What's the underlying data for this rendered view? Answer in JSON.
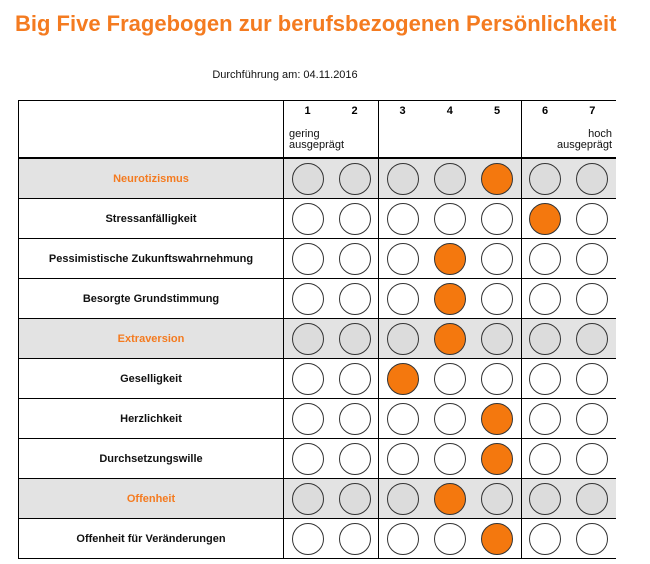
{
  "title": "Big Five Fragebogen zur berufsbezogenen Persönlichkeit",
  "date_line": "Durchführung am: 04.11.2016",
  "scale": {
    "numbers": [
      "1",
      "2",
      "3",
      "4",
      "5",
      "6",
      "7"
    ],
    "low_label": [
      "gering",
      "ausgeprägt"
    ],
    "high_label": [
      "hoch",
      "ausgeprägt"
    ]
  },
  "rows": [
    {
      "label": "Neurotizismus",
      "category": true,
      "value": 5
    },
    {
      "label": "Stressanfälligkeit",
      "category": false,
      "value": 6
    },
    {
      "label": "Pessimistische Zukunftswahrnehmung",
      "category": false,
      "value": 4
    },
    {
      "label": "Besorgte Grundstimmung",
      "category": false,
      "value": 4
    },
    {
      "label": "Extraversion",
      "category": true,
      "value": 4
    },
    {
      "label": "Geselligkeit",
      "category": false,
      "value": 3
    },
    {
      "label": "Herzlichkeit",
      "category": false,
      "value": 5
    },
    {
      "label": "Durchsetzungswille",
      "category": false,
      "value": 5
    },
    {
      "label": "Offenheit",
      "category": true,
      "value": 4
    },
    {
      "label": "Offenheit für Veränderungen",
      "category": false,
      "value": 5
    }
  ],
  "colors": {
    "accent": "#f47b20",
    "category_band": "#e3e3e3",
    "selected_fill": "#f4780e"
  }
}
